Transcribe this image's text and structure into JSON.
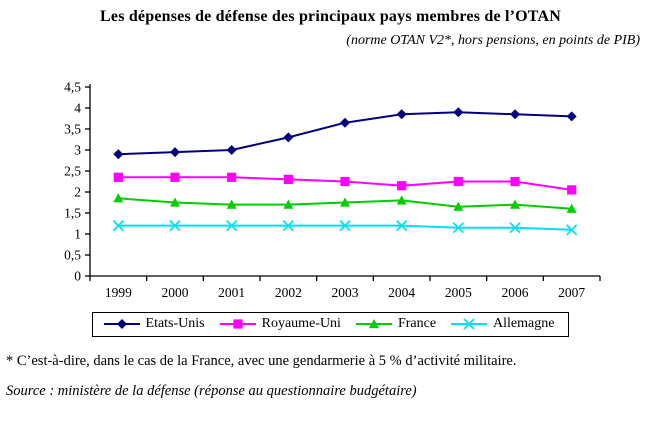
{
  "title": "Les dépenses de défense des principaux pays membres de l’OTAN",
  "subtitle": "(norme OTAN V2*, hors pensions, en points de PIB)",
  "footnote": "* C’est-à-dire, dans le cas de la France, avec une gendarmerie à 5 % d’activité militaire.",
  "source": "Source : ministère de la défense (réponse au questionnaire budgétaire)",
  "axis_color": "#000000",
  "chart_data": {
    "type": "line",
    "title": "Les dépenses de défense des principaux pays membres de l’OTAN",
    "subtitle": "(norme OTAN V2*, hors pensions, en points de PIB)",
    "categories": [
      "1999",
      "2000",
      "2001",
      "2002",
      "2003",
      "2004",
      "2005",
      "2006",
      "2007"
    ],
    "series": [
      {
        "name": "Etats-Unis",
        "marker": "diamond",
        "color": "#000080",
        "values": [
          2.9,
          2.95,
          3.0,
          3.3,
          3.65,
          3.85,
          3.9,
          3.85,
          3.8
        ]
      },
      {
        "name": "Royaume-Uni",
        "marker": "square",
        "color": "#FF00FF",
        "values": [
          2.35,
          2.35,
          2.35,
          2.3,
          2.25,
          2.15,
          2.25,
          2.25,
          2.05
        ]
      },
      {
        "name": "France",
        "marker": "triangle",
        "color": "#00CE00",
        "values": [
          1.85,
          1.75,
          1.7,
          1.7,
          1.75,
          1.8,
          1.65,
          1.7,
          1.6
        ]
      },
      {
        "name": "Allemagne",
        "marker": "x",
        "color": "#00E0EE",
        "values": [
          1.2,
          1.2,
          1.2,
          1.2,
          1.2,
          1.2,
          1.15,
          1.15,
          1.1
        ]
      }
    ],
    "xlabel": "",
    "ylabel": "",
    "ylim": [
      0,
      4.5
    ],
    "ytick_step": 0.5,
    "ytick_labels": [
      "0",
      "0,5",
      "1",
      "1,5",
      "2",
      "2,5",
      "3",
      "3,5",
      "4",
      "4,5"
    ],
    "grid": false,
    "legend_position": "bottom"
  }
}
